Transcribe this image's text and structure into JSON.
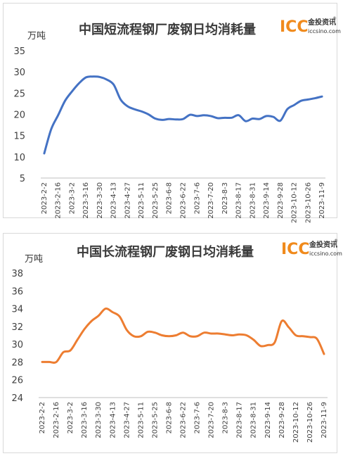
{
  "logo": {
    "main": "ICC",
    "cn": "金投资讯",
    "url": "iccsino.com",
    "reg": "®"
  },
  "chart_data": [
    {
      "type": "line",
      "title": "中国短流程钢厂废钢日均消耗量",
      "ylabel": "万吨",
      "ylim": [
        5,
        35
      ],
      "yticks": [
        5,
        10,
        15,
        20,
        25,
        30,
        35
      ],
      "grid": false,
      "color": "#4472c4",
      "x_tick_labels": [
        "2023-2-2",
        "2023-2-16",
        "2023-3-2",
        "2023-3-16",
        "2023-3-30",
        "2023-4-13",
        "2023-4-27",
        "2023-5-11",
        "2023-5-25",
        "2023-6-8",
        "2023-6-22",
        "2023-7-6",
        "2023-7-20",
        "2023-8-3",
        "2023-8-17",
        "2023-8-31",
        "2023-9-14",
        "2023-9-28",
        "2023-10-12",
        "2023-10-26",
        "2023-11-9"
      ],
      "x": [
        "2023-2-2",
        "2023-2-9",
        "2023-2-16",
        "2023-2-23",
        "2023-3-2",
        "2023-3-9",
        "2023-3-16",
        "2023-3-23",
        "2023-3-30",
        "2023-4-6",
        "2023-4-13",
        "2023-4-20",
        "2023-4-27",
        "2023-5-4",
        "2023-5-11",
        "2023-5-18",
        "2023-5-25",
        "2023-6-1",
        "2023-6-8",
        "2023-6-15",
        "2023-6-22",
        "2023-6-29",
        "2023-7-6",
        "2023-7-13",
        "2023-7-20",
        "2023-7-27",
        "2023-8-3",
        "2023-8-10",
        "2023-8-17",
        "2023-8-24",
        "2023-8-31",
        "2023-9-7",
        "2023-9-14",
        "2023-9-21",
        "2023-9-28",
        "2023-10-5",
        "2023-10-12",
        "2023-10-19",
        "2023-10-26",
        "2023-11-2",
        "2023-11-9"
      ],
      "values": [
        10.8,
        16.5,
        19.8,
        23.2,
        25.4,
        27.3,
        28.7,
        28.9,
        28.8,
        28.2,
        27.0,
        23.5,
        21.9,
        21.2,
        20.7,
        20.0,
        19.0,
        18.7,
        18.9,
        18.8,
        18.9,
        19.9,
        19.6,
        19.8,
        19.6,
        19.1,
        19.2,
        19.2,
        19.8,
        18.4,
        19.0,
        18.9,
        19.6,
        19.4,
        18.5,
        21.2,
        22.2,
        23.2,
        23.5,
        23.8,
        24.2
      ]
    },
    {
      "type": "line",
      "title": "中国长流程钢厂废钢日均消耗量",
      "ylabel": "万吨",
      "ylim": [
        24,
        38
      ],
      "yticks": [
        24,
        26,
        28,
        30,
        32,
        34,
        36,
        38
      ],
      "grid": false,
      "color": "#ed7d31",
      "x_tick_labels": [
        "2023-2-2",
        "2023-2-16",
        "2023-3-2",
        "2023-3-16",
        "2023-3-30",
        "2023-4-13",
        "2023-4-27",
        "2023-5-11",
        "2023-5-25",
        "2023-6-8",
        "2023-6-22",
        "2023-7-6",
        "2023-7-20",
        "2023-8-3",
        "2023-8-17",
        "2023-8-31",
        "2023-9-14",
        "2023-9-28",
        "2023-10-12",
        "2023-10-26",
        "2023-11-9"
      ],
      "x": [
        "2023-2-2",
        "2023-2-9",
        "2023-2-16",
        "2023-2-23",
        "2023-3-2",
        "2023-3-9",
        "2023-3-16",
        "2023-3-23",
        "2023-3-30",
        "2023-4-6",
        "2023-4-13",
        "2023-4-20",
        "2023-4-27",
        "2023-5-4",
        "2023-5-11",
        "2023-5-18",
        "2023-5-25",
        "2023-6-1",
        "2023-6-8",
        "2023-6-15",
        "2023-6-22",
        "2023-6-29",
        "2023-7-6",
        "2023-7-13",
        "2023-7-20",
        "2023-7-27",
        "2023-8-3",
        "2023-8-10",
        "2023-8-17",
        "2023-8-24",
        "2023-8-31",
        "2023-9-7",
        "2023-9-14",
        "2023-9-21",
        "2023-9-28",
        "2023-10-5",
        "2023-10-12",
        "2023-10-19",
        "2023-10-26",
        "2023-11-2",
        "2023-11-9"
      ],
      "values": [
        28.0,
        28.0,
        28.0,
        29.1,
        29.3,
        30.5,
        31.7,
        32.6,
        33.2,
        34.0,
        33.6,
        33.1,
        31.6,
        30.9,
        30.9,
        31.4,
        31.3,
        31.0,
        30.9,
        31.0,
        31.3,
        30.9,
        30.9,
        31.3,
        31.2,
        31.2,
        31.1,
        31.0,
        31.1,
        31.0,
        30.5,
        29.8,
        29.9,
        30.2,
        32.6,
        31.9,
        31.0,
        30.9,
        30.8,
        30.6,
        28.9
      ]
    }
  ]
}
